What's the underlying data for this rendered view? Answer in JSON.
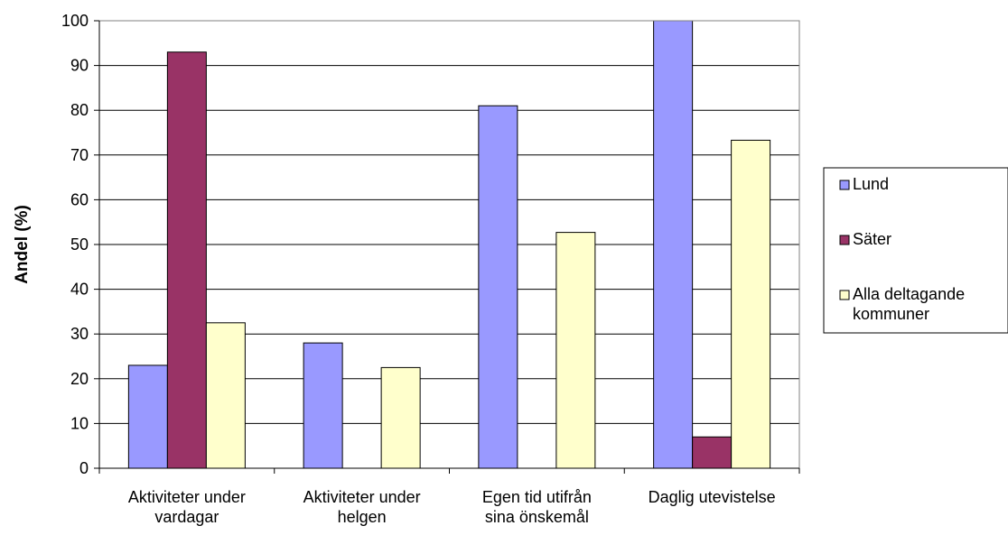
{
  "chart_data": {
    "type": "bar",
    "title": "",
    "xlabel": "",
    "ylabel": "Andel (%)",
    "ylim": [
      0,
      100
    ],
    "yticks": [
      0,
      10,
      20,
      30,
      40,
      50,
      60,
      70,
      80,
      90,
      100
    ],
    "grid": true,
    "legend_position": "right",
    "categories": [
      [
        "Aktiviteter under",
        "vardagar"
      ],
      [
        "Aktiviteter under",
        "helgen"
      ],
      [
        "Egen tid utifrån",
        "sina önskemål"
      ],
      [
        "Daglig utevistelse"
      ]
    ],
    "series": [
      {
        "name": [
          "Lund"
        ],
        "color": "#9999ff",
        "values": [
          23,
          28,
          81,
          100
        ]
      },
      {
        "name": [
          "Säter"
        ],
        "color": "#993366",
        "values": [
          93,
          0,
          0,
          7
        ]
      },
      {
        "name": [
          "Alla deltagande",
          "kommuner"
        ],
        "color": "#ffffcc",
        "values": [
          32.5,
          22.5,
          52.7,
          73.3
        ]
      }
    ]
  }
}
